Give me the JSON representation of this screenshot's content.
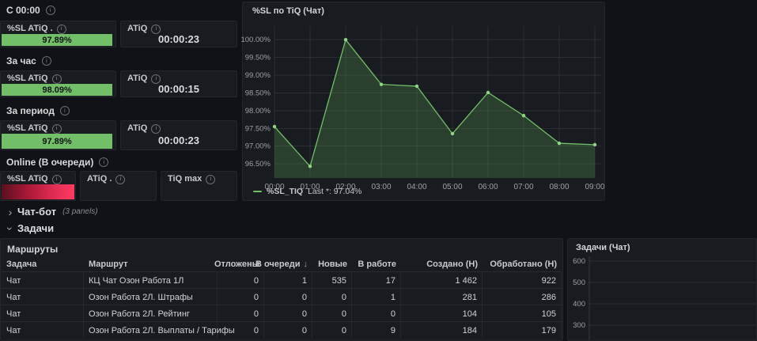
{
  "icons": {
    "info": "i",
    "chevron": "›"
  },
  "colors": {
    "background": "#111217",
    "panel": "#181b1f",
    "green": "#73bf69",
    "red": "#f2365c"
  },
  "sections": [
    {
      "label": "С 00:00",
      "panels": [
        {
          "title": "%SL ATiQ .",
          "value": "97.89%",
          "pct": 97.89
        },
        {
          "title": "ATiQ",
          "value": "00:00:23"
        }
      ]
    },
    {
      "label": "За час",
      "panels": [
        {
          "title": "%SL ATiQ",
          "value": "98.09%",
          "pct": 98.09
        },
        {
          "title": "ATiQ",
          "value": "00:00:15"
        }
      ]
    },
    {
      "label": "За период",
      "panels": [
        {
          "title": "%SL ATiQ",
          "value": "97.89%",
          "pct": 97.89
        },
        {
          "title": "ATiQ",
          "value": "00:00:23"
        }
      ]
    },
    {
      "label": "Online (В очереди)",
      "panels": [
        {
          "title": "%SL ATiQ",
          "pct": 100
        },
        {
          "title": "ATiQ ."
        },
        {
          "title": "TiQ max"
        }
      ]
    }
  ],
  "collapse_rows": {
    "chatbot": {
      "label": "Чат-бот",
      "meta": "(3 panels)",
      "state": "collapsed"
    },
    "tasks": {
      "label": "Задачи",
      "state": "expanded"
    }
  },
  "chart_data": [
    {
      "type": "area",
      "title": "%SL по TiQ (Чат)",
      "x": [
        "00:00",
        "01:00",
        "02:00",
        "03:00",
        "04:00",
        "05:00",
        "06:00",
        "07:00",
        "08:00",
        "09:00"
      ],
      "series": [
        {
          "name": "%SL_TIQ",
          "values": [
            97.55,
            96.43,
            100.0,
            98.74,
            98.69,
            97.35,
            98.51,
            97.86,
            97.08,
            97.04
          ]
        }
      ],
      "yticks": [
        "100.00%",
        "99.50%",
        "99.00%",
        "98.50%",
        "98.00%",
        "97.50%",
        "97.00%",
        "96.50%"
      ],
      "ylim": [
        96.1,
        100.25
      ],
      "grid": true,
      "line_color": "#73bf69",
      "legend": {
        "position": "bottom",
        "series": "%SL_TIQ",
        "stat": "Last *: 97.04%"
      }
    },
    {
      "type": "area",
      "title": "Задачи (Чат)",
      "yticks": [
        "600",
        "500",
        "400",
        "300"
      ],
      "ylim": [
        250,
        650
      ],
      "grid": true,
      "series": []
    }
  ],
  "table": {
    "title": "Маршруты",
    "sort_indicator": "↓",
    "columns": [
      {
        "label": "Задача",
        "align": "left"
      },
      {
        "label": "Маршрут",
        "align": "left"
      },
      {
        "label": "Отложены",
        "align": "right"
      },
      {
        "label": "В очереди",
        "align": "right",
        "sorted": "desc"
      },
      {
        "label": "Новые",
        "align": "right"
      },
      {
        "label": "В работе",
        "align": "right"
      },
      {
        "label": "Создано (Н)",
        "align": "right"
      },
      {
        "label": "Обработано (Н)",
        "align": "right"
      }
    ],
    "rows": [
      [
        "Чат",
        "КЦ Чат Озон Работа 1Л",
        "0",
        "1",
        "535",
        "17",
        "1 462",
        "922"
      ],
      [
        "Чат",
        "Озон Работа 2Л. Штрафы",
        "0",
        "0",
        "0",
        "1",
        "281",
        "286"
      ],
      [
        "Чат",
        "Озон Работа 2Л. Рейтинг",
        "0",
        "0",
        "0",
        "0",
        "104",
        "105"
      ],
      [
        "Чат",
        "Озон Работа 2Л. Выплаты / Тарифы",
        "0",
        "0",
        "0",
        "9",
        "184",
        "179"
      ]
    ]
  }
}
